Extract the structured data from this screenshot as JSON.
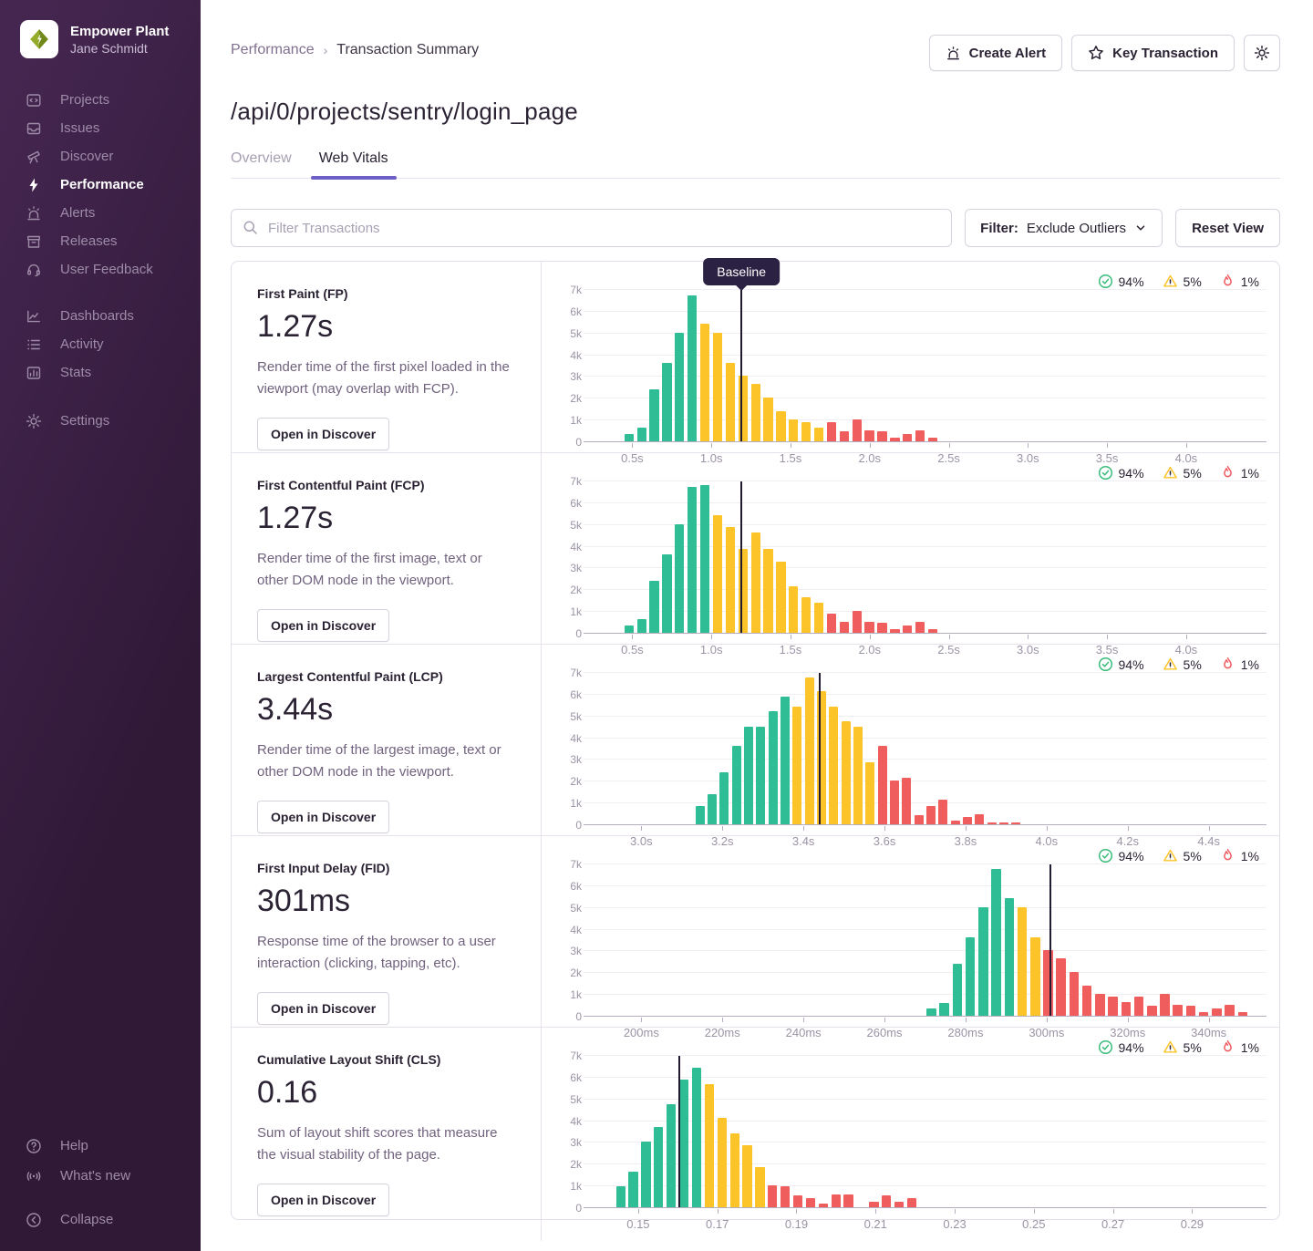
{
  "colors": {
    "good": "#2ebd94",
    "meh": "#fdc42a",
    "poor": "#f05d5d",
    "accent": "#6c5fc7",
    "baseline": "#221a30"
  },
  "sidebar": {
    "org_name": "Empower Plant",
    "user_name": "Jane Schmidt",
    "nav_primary": [
      {
        "label": "Projects"
      },
      {
        "label": "Issues"
      },
      {
        "label": "Discover"
      },
      {
        "label": "Performance"
      },
      {
        "label": "Alerts"
      },
      {
        "label": "Releases"
      },
      {
        "label": "User Feedback"
      }
    ],
    "nav_secondary": [
      {
        "label": "Dashboards"
      },
      {
        "label": "Activity"
      },
      {
        "label": "Stats"
      }
    ],
    "nav_tertiary": [
      {
        "label": "Settings"
      }
    ],
    "nav_footer": [
      {
        "label": "Help"
      },
      {
        "label": "What's new"
      },
      {
        "label": "Collapse"
      }
    ]
  },
  "header": {
    "breadcrumb_root": "Performance",
    "breadcrumb_current": "Transaction Summary",
    "create_alert_label": "Create Alert",
    "key_transaction_label": "Key Transaction"
  },
  "page": {
    "title": "/api/0/projects/sentry/login_page",
    "tab_overview": "Overview",
    "tab_web_vitals": "Web Vitals"
  },
  "toolbar": {
    "search_placeholder": "Filter Transactions",
    "filter_label": "Filter:",
    "filter_value": "Exclude Outliers",
    "reset_label": "Reset View"
  },
  "baseline_tooltip": "Baseline",
  "vitals": [
    {
      "name": "First Paint (FP)",
      "value": "1.27s",
      "description": "Render time of the first pixel loaded in the viewport (may overlap with FCP).",
      "button": "Open in Discover",
      "pcts": {
        "good": "94%",
        "meh": "5%",
        "poor": "1%"
      },
      "chart_data": {
        "type": "bar",
        "title": "First Paint histogram",
        "ylim": [
          0,
          7000
        ],
        "y_ticks": [
          "0",
          "1k",
          "2k",
          "3k",
          "4k",
          "5k",
          "6k",
          "7k"
        ],
        "xmin": 0.25,
        "xmax": 4.45,
        "x_ticks": [
          {
            "v": 0.5,
            "label": "0.5s"
          },
          {
            "v": 1.0,
            "label": "1.0s"
          },
          {
            "v": 1.5,
            "label": "1.5s"
          },
          {
            "v": 2.0,
            "label": "2.0s"
          },
          {
            "v": 2.5,
            "label": "2.5s"
          },
          {
            "v": 3.0,
            "label": "3.0s"
          },
          {
            "v": 3.5,
            "label": "3.5s"
          },
          {
            "v": 4.0,
            "label": "4.0s"
          }
        ],
        "bar_start": 0.44,
        "bar_bin": 0.08,
        "values": [
          350,
          650,
          2400,
          3600,
          5000,
          6700,
          5400,
          5000,
          3600,
          3000,
          2650,
          2000,
          1400,
          1000,
          900,
          650,
          900,
          450,
          1000,
          500,
          450,
          150,
          350,
          500,
          150
        ],
        "colors": [
          "g",
          "g",
          "g",
          "g",
          "g",
          "g",
          "y",
          "y",
          "y",
          "y",
          "y",
          "y",
          "y",
          "y",
          "y",
          "y",
          "r",
          "r",
          "r",
          "r",
          "r",
          "r",
          "r",
          "r",
          "r"
        ],
        "baseline": 1.19
      }
    },
    {
      "name": "First Contentful Paint (FCP)",
      "value": "1.27s",
      "description": "Render time of the first image, text or other DOM node in the viewport.",
      "button": "Open in Discover",
      "pcts": {
        "good": "94%",
        "meh": "5%",
        "poor": "1%"
      },
      "chart_data": {
        "type": "bar",
        "title": "First Contentful Paint histogram",
        "ylim": [
          0,
          7000
        ],
        "y_ticks": [
          "0",
          "1k",
          "2k",
          "3k",
          "4k",
          "5k",
          "6k",
          "7k"
        ],
        "xmin": 0.25,
        "xmax": 4.45,
        "x_ticks": [
          {
            "v": 0.5,
            "label": "0.5s"
          },
          {
            "v": 1.0,
            "label": "1.0s"
          },
          {
            "v": 1.5,
            "label": "1.5s"
          },
          {
            "v": 2.0,
            "label": "2.0s"
          },
          {
            "v": 2.5,
            "label": "2.5s"
          },
          {
            "v": 3.0,
            "label": "3.0s"
          },
          {
            "v": 3.5,
            "label": "3.5s"
          },
          {
            "v": 4.0,
            "label": "4.0s"
          }
        ],
        "bar_start": 0.44,
        "bar_bin": 0.08,
        "values": [
          350,
          650,
          2400,
          3600,
          5000,
          6700,
          6800,
          5400,
          4850,
          3850,
          4600,
          3850,
          3250,
          2150,
          1650,
          1400,
          900,
          500,
          1000,
          500,
          450,
          150,
          350,
          500,
          150
        ],
        "colors": [
          "g",
          "g",
          "g",
          "g",
          "g",
          "g",
          "g",
          "y",
          "y",
          "y",
          "y",
          "y",
          "y",
          "y",
          "y",
          "y",
          "r",
          "r",
          "r",
          "r",
          "r",
          "r",
          "r",
          "r",
          "r"
        ],
        "baseline": 1.19
      }
    },
    {
      "name": "Largest Contentful Paint (LCP)",
      "value": "3.44s",
      "description": "Render time of the largest image, text or other DOM node in the viewport.",
      "button": "Open in Discover",
      "pcts": {
        "good": "94%",
        "meh": "5%",
        "poor": "1%"
      },
      "chart_data": {
        "type": "bar",
        "title": "Largest Contentful Paint histogram",
        "ylim": [
          0,
          7000
        ],
        "y_ticks": [
          "0",
          "1k",
          "2k",
          "3k",
          "4k",
          "5k",
          "6k",
          "7k"
        ],
        "xmin": 2.88,
        "xmax": 4.52,
        "x_ticks": [
          {
            "v": 3.0,
            "label": "3.0s"
          },
          {
            "v": 3.2,
            "label": "3.2s"
          },
          {
            "v": 3.4,
            "label": "3.4s"
          },
          {
            "v": 3.6,
            "label": "3.6s"
          },
          {
            "v": 3.8,
            "label": "3.8s"
          },
          {
            "v": 4.0,
            "label": "4.0s"
          },
          {
            "v": 4.2,
            "label": "4.2s"
          },
          {
            "v": 4.4,
            "label": "4.4s"
          }
        ],
        "bar_start": 3.13,
        "bar_bin": 0.03,
        "values": [
          850,
          1400,
          2400,
          3600,
          4500,
          4500,
          5200,
          5850,
          5400,
          6750,
          6100,
          5400,
          4750,
          4500,
          2850,
          3600,
          2000,
          2150,
          400,
          850,
          1150,
          150,
          350,
          450,
          100,
          100,
          100
        ],
        "colors": [
          "g",
          "g",
          "g",
          "g",
          "g",
          "g",
          "g",
          "g",
          "y",
          "y",
          "y",
          "y",
          "y",
          "y",
          "y",
          "r",
          "r",
          "r",
          "r",
          "r",
          "r",
          "r",
          "r",
          "r",
          "r",
          "r",
          "r"
        ],
        "baseline": 3.44
      }
    },
    {
      "name": "First Input Delay (FID)",
      "value": "301ms",
      "description": "Response time of the browser to a user interaction (clicking, tapping, etc).",
      "button": "Open in Discover",
      "pcts": {
        "good": "94%",
        "meh": "5%",
        "poor": "1%"
      },
      "chart_data": {
        "type": "bar",
        "title": "First Input Delay histogram",
        "ylim": [
          0,
          7000
        ],
        "y_ticks": [
          "0",
          "1k",
          "2k",
          "3k",
          "4k",
          "5k",
          "6k",
          "7k"
        ],
        "xmin": 188,
        "xmax": 352,
        "x_ticks": [
          {
            "v": 200,
            "label": "200ms"
          },
          {
            "v": 220,
            "label": "220ms"
          },
          {
            "v": 240,
            "label": "240ms"
          },
          {
            "v": 260,
            "label": "260ms"
          },
          {
            "v": 280,
            "label": "280ms"
          },
          {
            "v": 300,
            "label": "300ms"
          },
          {
            "v": 320,
            "label": "320ms"
          },
          {
            "v": 340,
            "label": "340ms"
          }
        ],
        "bar_start": 270,
        "bar_bin": 3.2,
        "values": [
          350,
          600,
          2400,
          3600,
          5000,
          6750,
          5400,
          5000,
          3600,
          3000,
          2650,
          2000,
          1400,
          1000,
          900,
          650,
          900,
          450,
          1000,
          500,
          450,
          150,
          350,
          500,
          150
        ],
        "colors": [
          "g",
          "g",
          "g",
          "g",
          "g",
          "g",
          "g",
          "y",
          "y",
          "r",
          "r",
          "r",
          "r",
          "r",
          "r",
          "r",
          "r",
          "r",
          "r",
          "r",
          "r",
          "r",
          "r",
          "r",
          "r"
        ],
        "baseline": 301
      }
    },
    {
      "name": "Cumulative Layout Shift (CLS)",
      "value": "0.16",
      "description": "Sum of layout shift scores that measure the visual stability of the page.",
      "button": "Open in Discover",
      "pcts": {
        "good": "94%",
        "meh": "5%",
        "poor": "1%"
      },
      "chart_data": {
        "type": "bar",
        "title": "Cumulative Layout Shift histogram",
        "ylim": [
          0,
          7000
        ],
        "y_ticks": [
          "0",
          "1k",
          "2k",
          "3k",
          "4k",
          "5k",
          "6k",
          "7k"
        ],
        "xmin": 0.1385,
        "xmax": 0.3065,
        "x_ticks": [
          {
            "v": 0.15,
            "label": "0.15"
          },
          {
            "v": 0.17,
            "label": "0.17"
          },
          {
            "v": 0.19,
            "label": "0.19"
          },
          {
            "v": 0.21,
            "label": "0.21"
          },
          {
            "v": 0.23,
            "label": "0.23"
          },
          {
            "v": 0.25,
            "label": "0.25"
          },
          {
            "v": 0.27,
            "label": "0.27"
          },
          {
            "v": 0.29,
            "label": "0.29"
          }
        ],
        "bar_start": 0.144,
        "bar_bin": 0.0032,
        "values": [
          950,
          1650,
          3000,
          3700,
          4750,
          5850,
          6400,
          5650,
          4100,
          3400,
          2850,
          1850,
          1000,
          950,
          550,
          400,
          150,
          600,
          600,
          0,
          250,
          550,
          250,
          400
        ],
        "colors": [
          "g",
          "g",
          "g",
          "g",
          "g",
          "g",
          "g",
          "y",
          "y",
          "y",
          "y",
          "y",
          "r",
          "r",
          "r",
          "r",
          "r",
          "r",
          "r",
          "r",
          "r",
          "r",
          "r",
          "r"
        ],
        "baseline": 0.1603
      }
    }
  ]
}
